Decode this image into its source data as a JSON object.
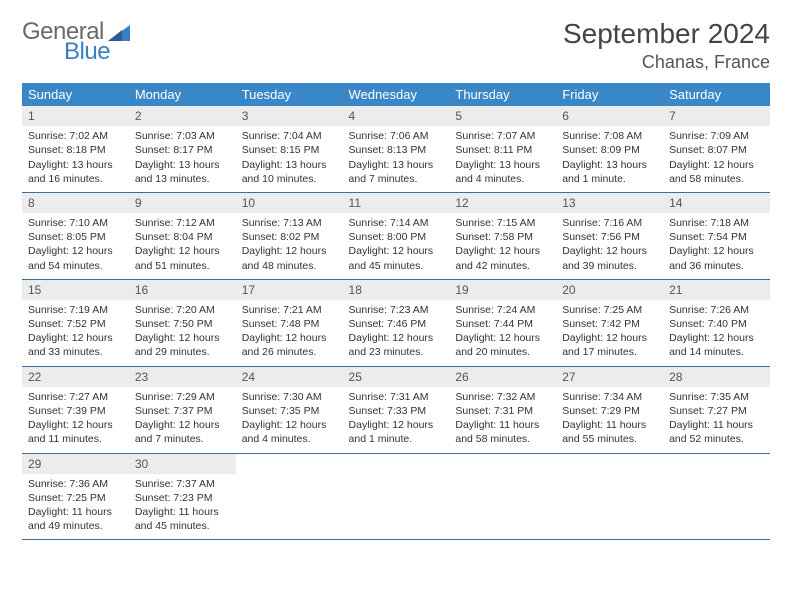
{
  "brand": {
    "part1": "General",
    "part2": "Blue",
    "triangle_color": "#3a7fc4",
    "gray": "#6a6a6a"
  },
  "title": "September 2024",
  "location": "Chanas, France",
  "header_bg": "#3a87c7",
  "row_border": "#3a6fa0",
  "daynum_bg": "#ececec",
  "weekdays": [
    "Sunday",
    "Monday",
    "Tuesday",
    "Wednesday",
    "Thursday",
    "Friday",
    "Saturday"
  ],
  "weeks": [
    [
      {
        "n": "1",
        "sr": "7:02 AM",
        "ss": "8:18 PM",
        "dl": "13 hours and 16 minutes."
      },
      {
        "n": "2",
        "sr": "7:03 AM",
        "ss": "8:17 PM",
        "dl": "13 hours and 13 minutes."
      },
      {
        "n": "3",
        "sr": "7:04 AM",
        "ss": "8:15 PM",
        "dl": "13 hours and 10 minutes."
      },
      {
        "n": "4",
        "sr": "7:06 AM",
        "ss": "8:13 PM",
        "dl": "13 hours and 7 minutes."
      },
      {
        "n": "5",
        "sr": "7:07 AM",
        "ss": "8:11 PM",
        "dl": "13 hours and 4 minutes."
      },
      {
        "n": "6",
        "sr": "7:08 AM",
        "ss": "8:09 PM",
        "dl": "13 hours and 1 minute."
      },
      {
        "n": "7",
        "sr": "7:09 AM",
        "ss": "8:07 PM",
        "dl": "12 hours and 58 minutes."
      }
    ],
    [
      {
        "n": "8",
        "sr": "7:10 AM",
        "ss": "8:05 PM",
        "dl": "12 hours and 54 minutes."
      },
      {
        "n": "9",
        "sr": "7:12 AM",
        "ss": "8:04 PM",
        "dl": "12 hours and 51 minutes."
      },
      {
        "n": "10",
        "sr": "7:13 AM",
        "ss": "8:02 PM",
        "dl": "12 hours and 48 minutes."
      },
      {
        "n": "11",
        "sr": "7:14 AM",
        "ss": "8:00 PM",
        "dl": "12 hours and 45 minutes."
      },
      {
        "n": "12",
        "sr": "7:15 AM",
        "ss": "7:58 PM",
        "dl": "12 hours and 42 minutes."
      },
      {
        "n": "13",
        "sr": "7:16 AM",
        "ss": "7:56 PM",
        "dl": "12 hours and 39 minutes."
      },
      {
        "n": "14",
        "sr": "7:18 AM",
        "ss": "7:54 PM",
        "dl": "12 hours and 36 minutes."
      }
    ],
    [
      {
        "n": "15",
        "sr": "7:19 AM",
        "ss": "7:52 PM",
        "dl": "12 hours and 33 minutes."
      },
      {
        "n": "16",
        "sr": "7:20 AM",
        "ss": "7:50 PM",
        "dl": "12 hours and 29 minutes."
      },
      {
        "n": "17",
        "sr": "7:21 AM",
        "ss": "7:48 PM",
        "dl": "12 hours and 26 minutes."
      },
      {
        "n": "18",
        "sr": "7:23 AM",
        "ss": "7:46 PM",
        "dl": "12 hours and 23 minutes."
      },
      {
        "n": "19",
        "sr": "7:24 AM",
        "ss": "7:44 PM",
        "dl": "12 hours and 20 minutes."
      },
      {
        "n": "20",
        "sr": "7:25 AM",
        "ss": "7:42 PM",
        "dl": "12 hours and 17 minutes."
      },
      {
        "n": "21",
        "sr": "7:26 AM",
        "ss": "7:40 PM",
        "dl": "12 hours and 14 minutes."
      }
    ],
    [
      {
        "n": "22",
        "sr": "7:27 AM",
        "ss": "7:39 PM",
        "dl": "12 hours and 11 minutes."
      },
      {
        "n": "23",
        "sr": "7:29 AM",
        "ss": "7:37 PM",
        "dl": "12 hours and 7 minutes."
      },
      {
        "n": "24",
        "sr": "7:30 AM",
        "ss": "7:35 PM",
        "dl": "12 hours and 4 minutes."
      },
      {
        "n": "25",
        "sr": "7:31 AM",
        "ss": "7:33 PM",
        "dl": "12 hours and 1 minute."
      },
      {
        "n": "26",
        "sr": "7:32 AM",
        "ss": "7:31 PM",
        "dl": "11 hours and 58 minutes."
      },
      {
        "n": "27",
        "sr": "7:34 AM",
        "ss": "7:29 PM",
        "dl": "11 hours and 55 minutes."
      },
      {
        "n": "28",
        "sr": "7:35 AM",
        "ss": "7:27 PM",
        "dl": "11 hours and 52 minutes."
      }
    ],
    [
      {
        "n": "29",
        "sr": "7:36 AM",
        "ss": "7:25 PM",
        "dl": "11 hours and 49 minutes."
      },
      {
        "n": "30",
        "sr": "7:37 AM",
        "ss": "7:23 PM",
        "dl": "11 hours and 45 minutes."
      },
      null,
      null,
      null,
      null,
      null
    ]
  ],
  "labels": {
    "sunrise": "Sunrise: ",
    "sunset": "Sunset: ",
    "daylight": "Daylight: "
  }
}
